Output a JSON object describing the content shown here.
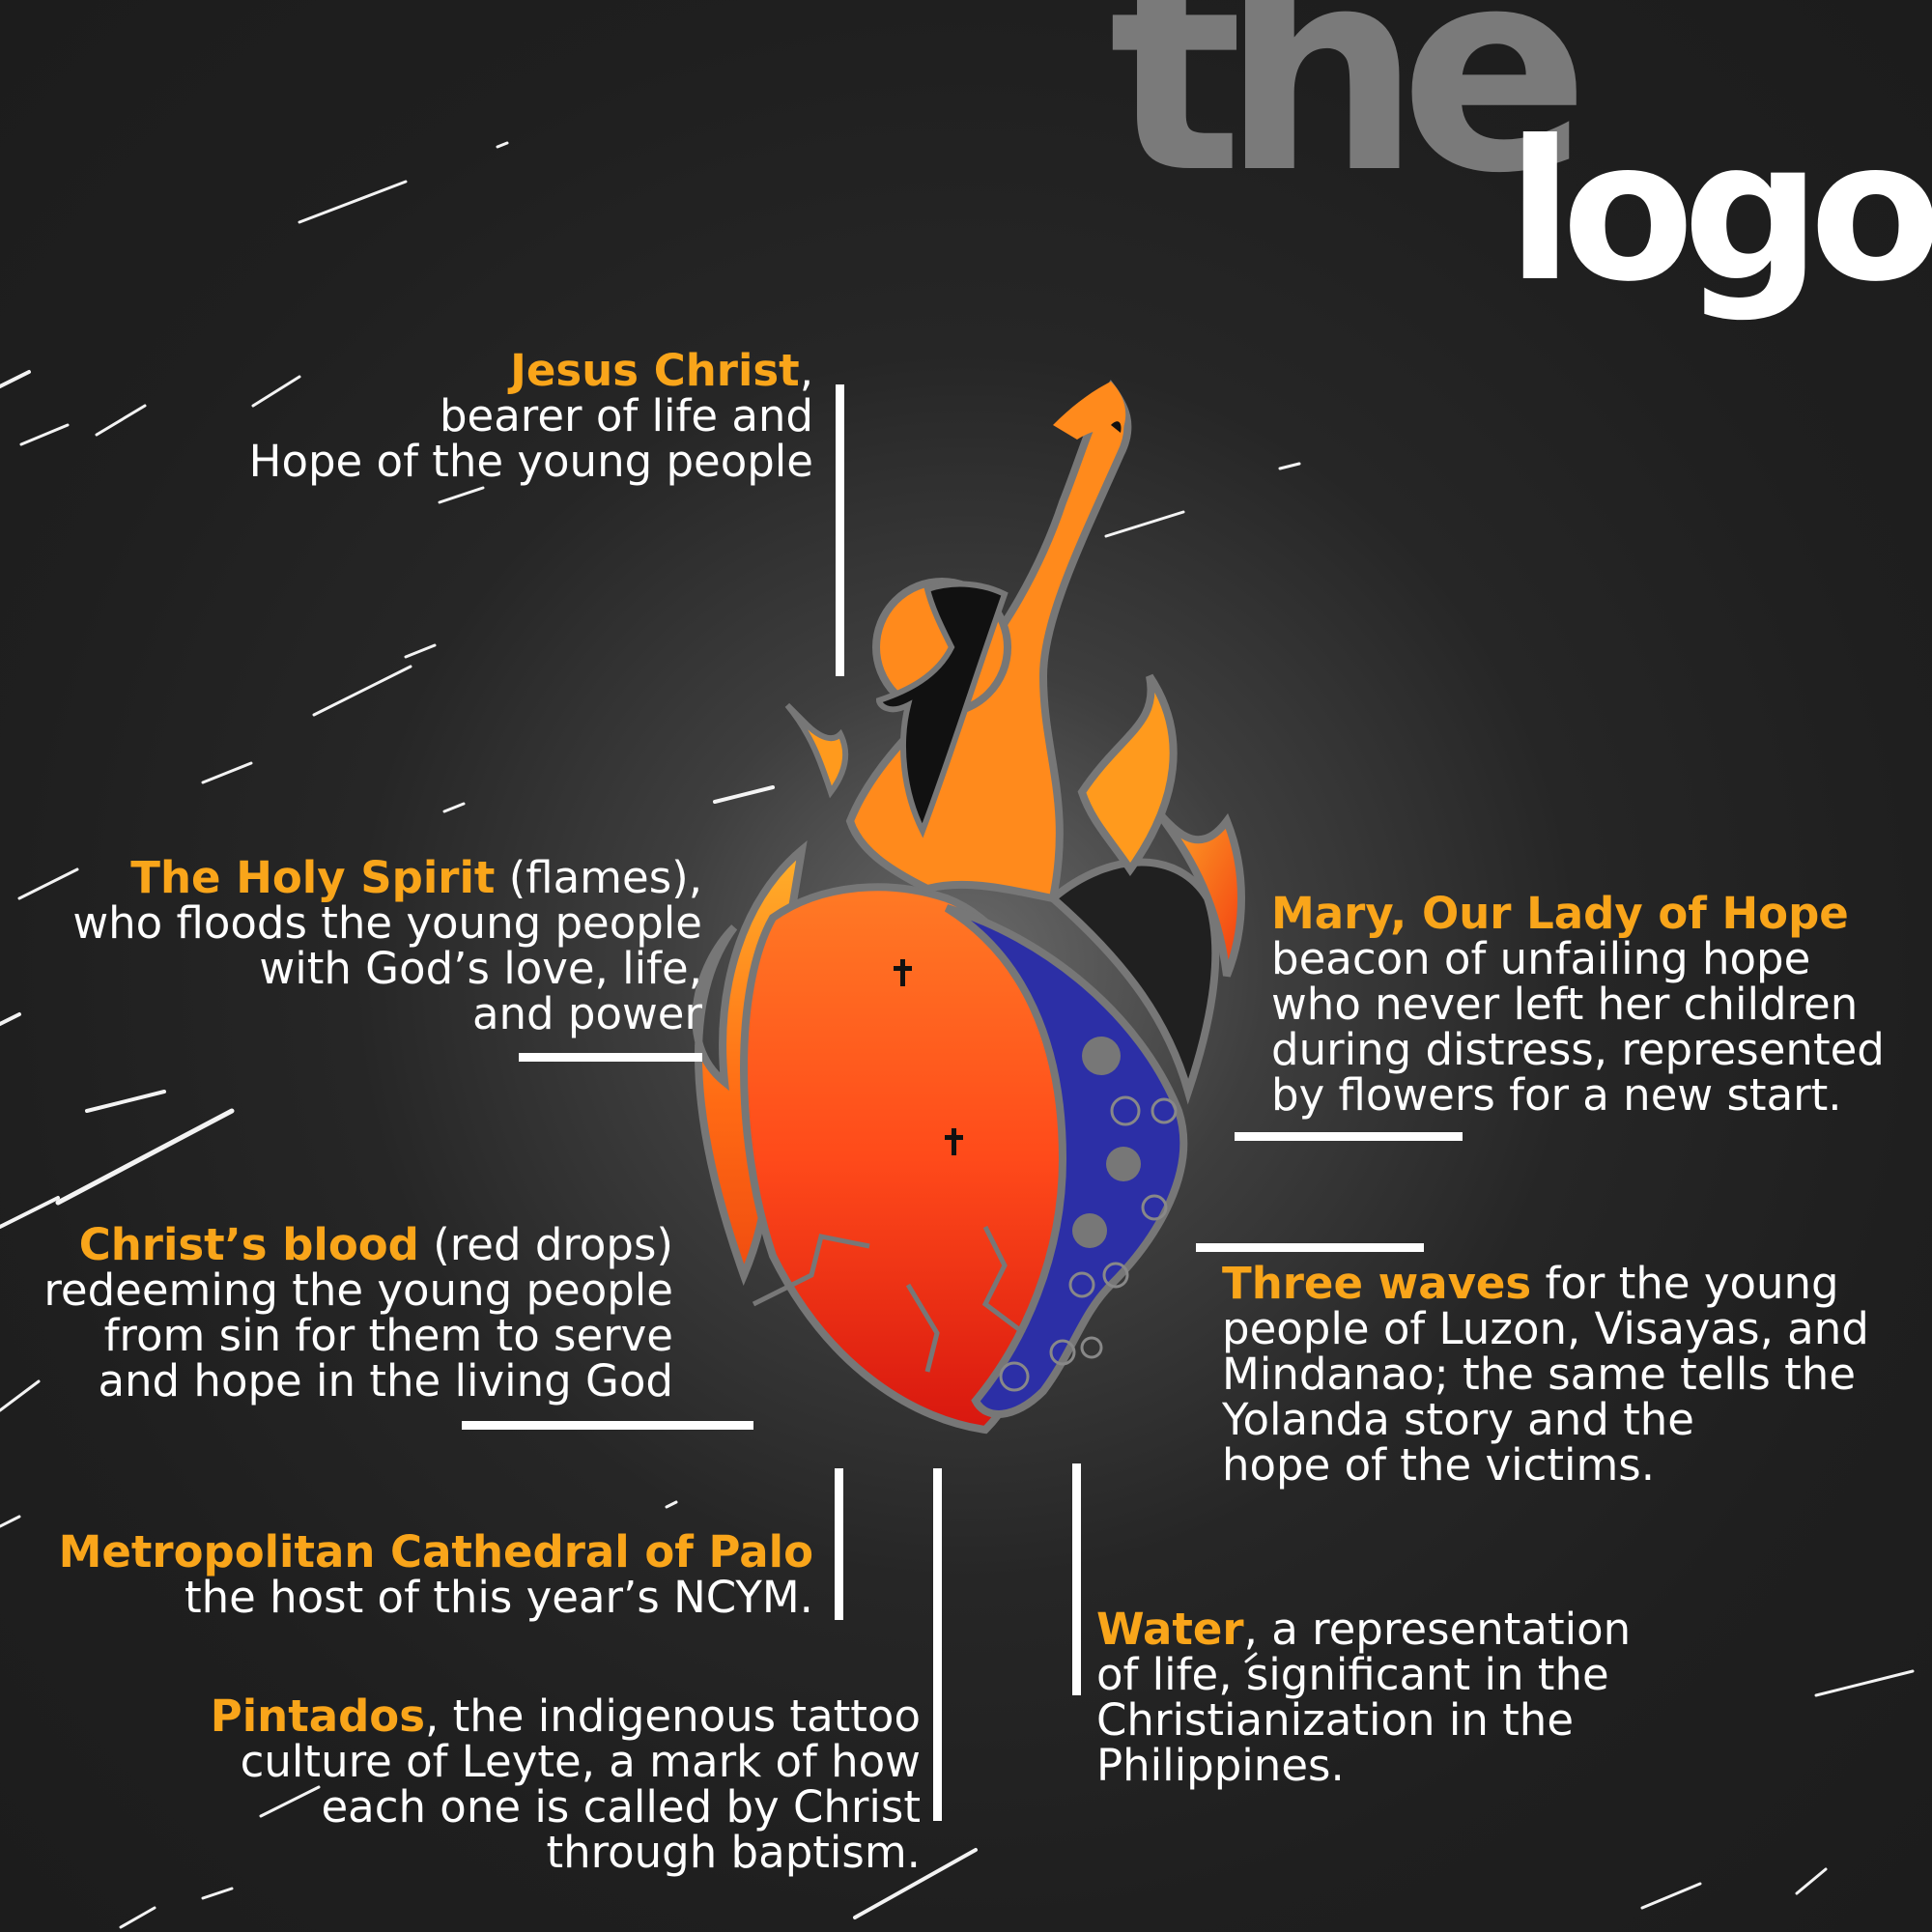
{
  "title": {
    "word1": "the",
    "word2": "logo"
  },
  "annotations": {
    "jesus": {
      "highlight": "Jesus Christ",
      "highlight_suffix": ",",
      "line2": "bearer of life and",
      "line3": "Hope of the young people"
    },
    "holy_spirit": {
      "highlight": "The Holy Spirit",
      "highlight_suffix": " (flames),",
      "line2": "who floods the young people",
      "line3": "with God’s love, life,",
      "line4": "and power"
    },
    "blood": {
      "highlight": "Christ’s blood",
      "highlight_suffix": " (red drops)",
      "line2": "redeeming the young people",
      "line3": "from sin for them to serve",
      "line4": "and hope in the living God"
    },
    "cathedral": {
      "highlight": "Metropolitan Cathedral of Palo",
      "line2": "the host of this year’s NCYM."
    },
    "pintados": {
      "highlight": "Pintados",
      "highlight_suffix": ", the indigenous tattoo",
      "line2": "culture of Leyte, a mark of how",
      "line3": "each one is called by Christ",
      "line4": "through baptism."
    },
    "mary": {
      "highlight": "Mary, Our Lady of Hope",
      "line2": "beacon of unfailing hope",
      "line3": "who never left her children",
      "line4": "during distress, represented",
      "line5": "by flowers for a new start."
    },
    "waves": {
      "highlight": "Three waves",
      "highlight_suffix": " for the young",
      "line2": "people of Luzon, Visayas, and",
      "line3": "Mindanao; the same tells the",
      "line4": "Yolanda story and the",
      "line5": "hope of the victims."
    },
    "water": {
      "highlight": "Water",
      "highlight_suffix": ", a representation",
      "line2": "of life, significant in the",
      "line3": "Christianization in the",
      "line4": "Philippines."
    }
  },
  "colors": {
    "accent": "#f9a51a",
    "title_gray": "#7a7a7a",
    "background": "#1f1f1f",
    "flame_orange": "#f7891f",
    "heart_red": "#e6311f",
    "wave_blue": "#2a2ea0"
  },
  "icons": {
    "logo": "flaming-heart-logo",
    "cross": "cross-icon",
    "flower": "flower-icon"
  }
}
